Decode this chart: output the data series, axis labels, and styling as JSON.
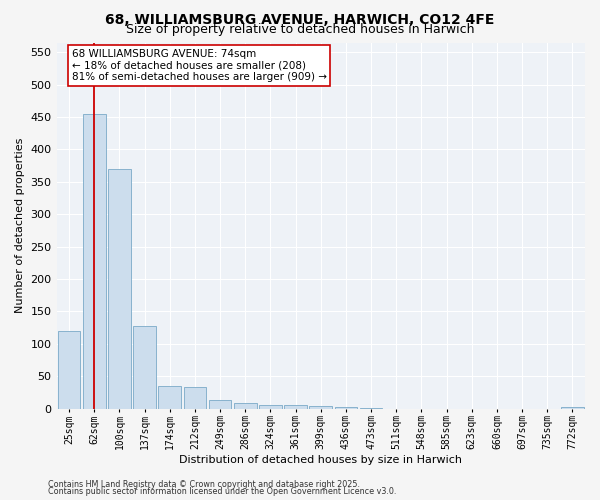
{
  "title1": "68, WILLIAMSBURG AVENUE, HARWICH, CO12 4FE",
  "title2": "Size of property relative to detached houses in Harwich",
  "xlabel": "Distribution of detached houses by size in Harwich",
  "ylabel": "Number of detached properties",
  "categories": [
    "25sqm",
    "62sqm",
    "100sqm",
    "137sqm",
    "174sqm",
    "212sqm",
    "249sqm",
    "286sqm",
    "324sqm",
    "361sqm",
    "399sqm",
    "436sqm",
    "473sqm",
    "511sqm",
    "548sqm",
    "585sqm",
    "623sqm",
    "660sqm",
    "697sqm",
    "735sqm",
    "772sqm"
  ],
  "bar_heights": [
    120,
    455,
    370,
    128,
    35,
    33,
    13,
    8,
    6,
    5,
    4,
    2,
    1,
    0,
    0,
    0,
    0,
    0,
    0,
    0,
    2
  ],
  "bar_color": "#ccdded",
  "bar_edge_color": "#7aaac8",
  "vline_x_index": 1,
  "vline_color": "#cc0000",
  "annotation_text": "68 WILLIAMSBURG AVENUE: 74sqm\n← 18% of detached houses are smaller (208)\n81% of semi-detached houses are larger (909) →",
  "annotation_box_color": "#ffffff",
  "annotation_box_edge": "#cc0000",
  "footer1": "Contains HM Land Registry data © Crown copyright and database right 2025.",
  "footer2": "Contains public sector information licensed under the Open Government Licence v3.0.",
  "ylim": [
    0,
    565
  ],
  "yticks": [
    0,
    50,
    100,
    150,
    200,
    250,
    300,
    350,
    400,
    450,
    500,
    550
  ],
  "background_color": "#eef2f7",
  "grid_color": "#ffffff",
  "fig_facecolor": "#f5f5f5",
  "title_fontsize": 10,
  "subtitle_fontsize": 9,
  "annotation_fontsize": 7.5,
  "axis_label_fontsize": 8,
  "tick_fontsize": 7,
  "footer_fontsize": 5.8
}
